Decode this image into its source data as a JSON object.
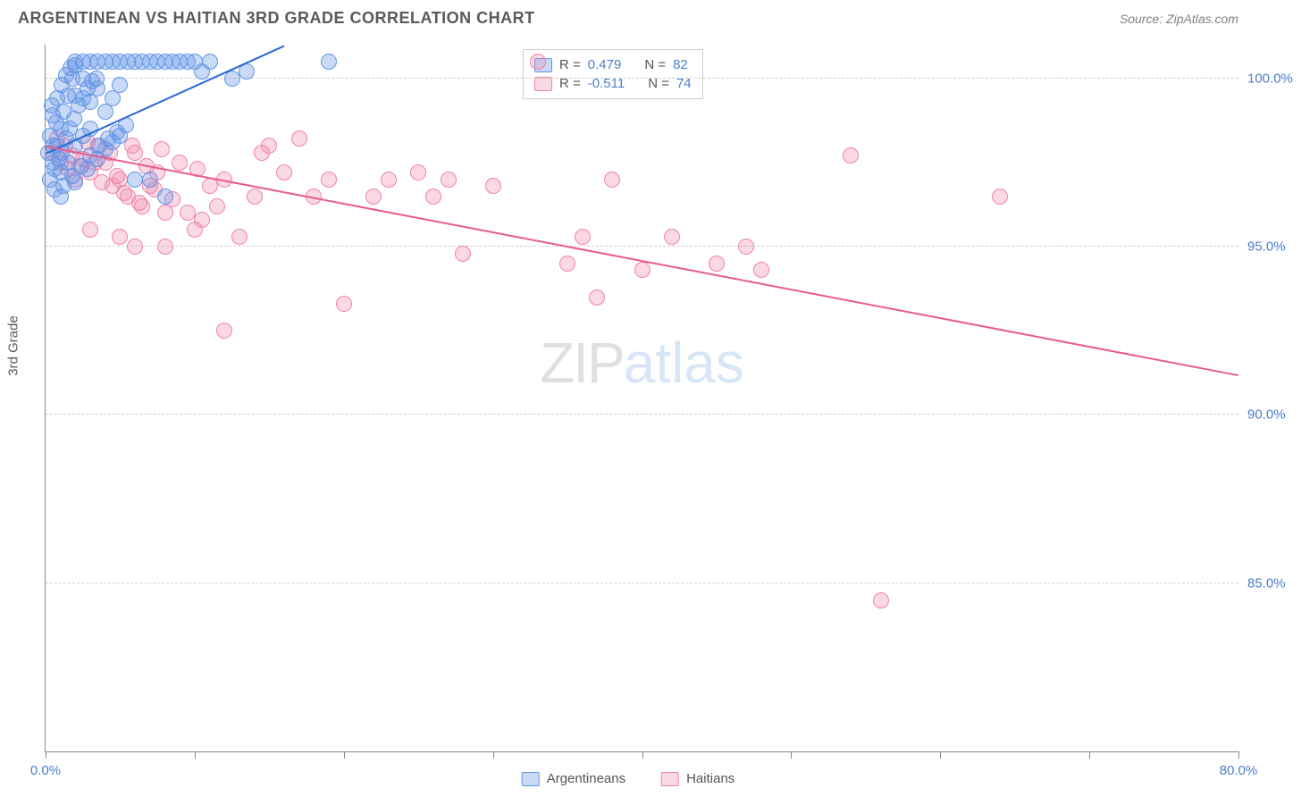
{
  "header": {
    "title": "ARGENTINEAN VS HAITIAN 3RD GRADE CORRELATION CHART",
    "source": "Source: ZipAtlas.com"
  },
  "chart": {
    "type": "scatter",
    "y_axis_label": "3rd Grade",
    "xlim": [
      0,
      80
    ],
    "ylim": [
      80,
      101
    ],
    "x_ticks": [
      0,
      10,
      20,
      30,
      40,
      50,
      60,
      70,
      80
    ],
    "x_tick_labels": [
      "0.0%",
      "",
      "",
      "",
      "",
      "",
      "",
      "",
      "80.0%"
    ],
    "y_ticks": [
      85,
      90,
      95,
      100
    ],
    "y_tick_labels": [
      "85.0%",
      "90.0%",
      "95.0%",
      "100.0%"
    ],
    "grid_color": "#d0d0d0",
    "background_color": "#ffffff",
    "axis_color": "#888888",
    "tick_label_color": "#4a7ec9",
    "tick_label_fontsize": 15,
    "title_fontsize": 18,
    "watermark": {
      "text_a": "ZIP",
      "text_b": "atlas",
      "fontsize": 64
    }
  },
  "series": {
    "argentineans": {
      "label": "Argentineans",
      "color_fill": "rgba(100,150,230,0.35)",
      "color_stroke": "#6496e6",
      "trend_color": "#2b68d8",
      "marker_radius": 9,
      "r_value": "0.479",
      "n_value": "82",
      "trend": {
        "x1": 0,
        "y1": 97.8,
        "x2": 16,
        "y2": 101
      },
      "points": [
        [
          0.5,
          97.5
        ],
        [
          0.8,
          98.0
        ],
        [
          1.0,
          98.5
        ],
        [
          1.2,
          99.0
        ],
        [
          1.5,
          99.5
        ],
        [
          1.8,
          100.0
        ],
        [
          2.0,
          100.5
        ],
        [
          2.5,
          100.5
        ],
        [
          3.0,
          100.5
        ],
        [
          3.5,
          100.5
        ],
        [
          4.0,
          100.5
        ],
        [
          4.5,
          100.5
        ],
        [
          5.0,
          100.5
        ],
        [
          5.5,
          100.5
        ],
        [
          6.0,
          100.5
        ],
        [
          6.5,
          100.5
        ],
        [
          7.0,
          100.5
        ],
        [
          7.5,
          100.5
        ],
        [
          8.0,
          100.5
        ],
        [
          8.5,
          100.5
        ],
        [
          9.0,
          100.5
        ],
        [
          9.5,
          100.5
        ],
        [
          10.0,
          100.5
        ],
        [
          10.5,
          100.2
        ],
        [
          11.0,
          100.5
        ],
        [
          0.3,
          97.0
        ],
        [
          0.6,
          97.3
        ],
        [
          0.9,
          97.6
        ],
        [
          1.1,
          97.8
        ],
        [
          1.4,
          98.2
        ],
        [
          1.6,
          98.5
        ],
        [
          1.9,
          98.8
        ],
        [
          2.2,
          99.2
        ],
        [
          2.5,
          99.4
        ],
        [
          2.8,
          99.7
        ],
        [
          3.1,
          99.9
        ],
        [
          3.4,
          100.0
        ],
        [
          1.0,
          97.2
        ],
        [
          1.5,
          97.5
        ],
        [
          2.0,
          98.0
        ],
        [
          2.5,
          98.3
        ],
        [
          3.0,
          98.5
        ],
        [
          0.5,
          98.0
        ],
        [
          0.7,
          98.7
        ],
        [
          0.4,
          99.2
        ],
        [
          19.0,
          100.5
        ],
        [
          12.5,
          100.0
        ],
        [
          13.5,
          100.2
        ],
        [
          2.0,
          96.9
        ],
        [
          2.8,
          97.3
        ],
        [
          3.5,
          97.6
        ],
        [
          4.0,
          97.9
        ],
        [
          4.5,
          98.1
        ],
        [
          5.0,
          98.3
        ],
        [
          1.2,
          96.8
        ],
        [
          1.8,
          97.1
        ],
        [
          2.4,
          97.4
        ],
        [
          3.0,
          97.7
        ],
        [
          3.6,
          98.0
        ],
        [
          4.2,
          98.2
        ],
        [
          4.8,
          98.4
        ],
        [
          5.4,
          98.6
        ],
        [
          0.3,
          98.3
        ],
        [
          0.5,
          98.9
        ],
        [
          0.8,
          99.4
        ],
        [
          1.1,
          99.8
        ],
        [
          1.4,
          100.1
        ],
        [
          1.7,
          100.3
        ],
        [
          2.0,
          100.4
        ],
        [
          0.2,
          97.8
        ],
        [
          0.6,
          96.7
        ],
        [
          1.0,
          96.5
        ],
        [
          6.0,
          97.0
        ],
        [
          7.0,
          97.0
        ],
        [
          8.0,
          96.5
        ],
        [
          2.0,
          99.5
        ],
        [
          2.5,
          100.0
        ],
        [
          3.0,
          99.3
        ],
        [
          3.5,
          99.7
        ],
        [
          4.0,
          99.0
        ],
        [
          4.5,
          99.4
        ],
        [
          5.0,
          99.8
        ]
      ]
    },
    "haitians": {
      "label": "Haitians",
      "color_fill": "rgba(240,130,170,0.30)",
      "color_stroke": "#f082aa",
      "trend_color": "#e85a8f",
      "marker_radius": 9,
      "r_value": "-0.511",
      "n_value": "74",
      "trend": {
        "x1": 0,
        "y1": 98.0,
        "x2": 80,
        "y2": 91.2
      },
      "points": [
        [
          0.5,
          97.8
        ],
        [
          1.0,
          97.5
        ],
        [
          1.5,
          97.3
        ],
        [
          2.0,
          97.0
        ],
        [
          2.5,
          97.6
        ],
        [
          3.0,
          97.2
        ],
        [
          3.5,
          98.0
        ],
        [
          4.0,
          97.5
        ],
        [
          4.5,
          96.8
        ],
        [
          5.0,
          97.0
        ],
        [
          5.5,
          96.5
        ],
        [
          6.0,
          97.8
        ],
        [
          6.5,
          96.2
        ],
        [
          7.0,
          96.8
        ],
        [
          7.5,
          97.2
        ],
        [
          8.0,
          96.0
        ],
        [
          9.0,
          97.5
        ],
        [
          10.0,
          95.5
        ],
        [
          11.0,
          96.8
        ],
        [
          12.0,
          97.0
        ],
        [
          10.5,
          95.8
        ],
        [
          14.0,
          96.5
        ],
        [
          15.0,
          98.0
        ],
        [
          16.0,
          97.2
        ],
        [
          17.0,
          98.2
        ],
        [
          18.0,
          96.5
        ],
        [
          19.0,
          97.0
        ],
        [
          20.0,
          93.3
        ],
        [
          13.0,
          95.3
        ],
        [
          22.0,
          96.5
        ],
        [
          23.0,
          97.0
        ],
        [
          14.5,
          97.8
        ],
        [
          25.0,
          97.2
        ],
        [
          26.0,
          96.5
        ],
        [
          27.0,
          97.0
        ],
        [
          28.0,
          94.8
        ],
        [
          12.0,
          92.5
        ],
        [
          30.0,
          96.8
        ],
        [
          35.0,
          94.5
        ],
        [
          36.0,
          95.3
        ],
        [
          33.0,
          100.5
        ],
        [
          37.0,
          93.5
        ],
        [
          38.0,
          97.0
        ],
        [
          40.0,
          94.3
        ],
        [
          42.0,
          95.3
        ],
        [
          45.0,
          94.5
        ],
        [
          47.0,
          95.0
        ],
        [
          48.0,
          94.3
        ],
        [
          54.0,
          97.7
        ],
        [
          56.0,
          84.5
        ],
        [
          64.0,
          96.5
        ],
        [
          0.8,
          98.2
        ],
        [
          1.3,
          98.0
        ],
        [
          1.8,
          97.7
        ],
        [
          2.3,
          97.4
        ],
        [
          2.8,
          98.1
        ],
        [
          3.3,
          97.5
        ],
        [
          3.8,
          96.9
        ],
        [
          4.3,
          97.8
        ],
        [
          4.8,
          97.1
        ],
        [
          5.3,
          96.6
        ],
        [
          5.8,
          98.0
        ],
        [
          6.3,
          96.3
        ],
        [
          6.8,
          97.4
        ],
        [
          7.3,
          96.7
        ],
        [
          7.8,
          97.9
        ],
        [
          8.5,
          96.4
        ],
        [
          9.5,
          96.0
        ],
        [
          10.2,
          97.3
        ],
        [
          11.5,
          96.2
        ],
        [
          8.0,
          95.0
        ],
        [
          3.0,
          95.5
        ],
        [
          5.0,
          95.3
        ],
        [
          6.0,
          95.0
        ]
      ]
    }
  },
  "legend": {
    "r_label": "R =",
    "n_label": "N ="
  }
}
